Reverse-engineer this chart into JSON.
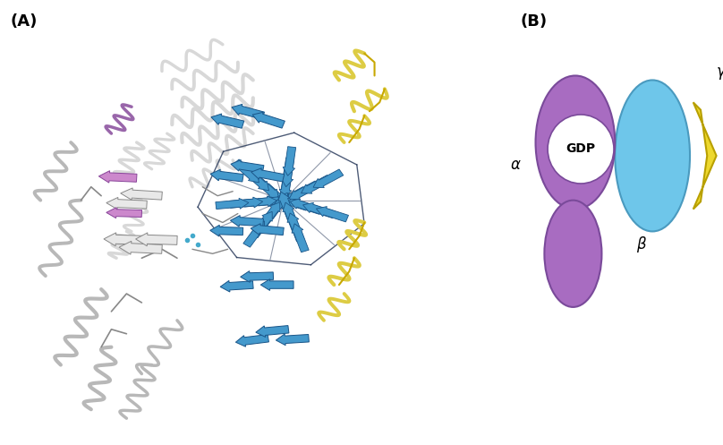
{
  "panel_A_label": "(A)",
  "panel_B_label": "(B)",
  "alpha_color": "#A86CC1",
  "alpha_edge_color": "#7a4a9a",
  "beta_color": "#6EC6EA",
  "beta_edge_color": "#4a9abf",
  "gamma_color": "#EDD82E",
  "gamma_edge_color": "#b8a000",
  "gdp_text": "GDP",
  "alpha_label": "α",
  "beta_label": "β",
  "gamma_label": "γ",
  "bg_color": "#ffffff",
  "fig_width": 8.08,
  "fig_height": 4.97,
  "dpi": 100
}
